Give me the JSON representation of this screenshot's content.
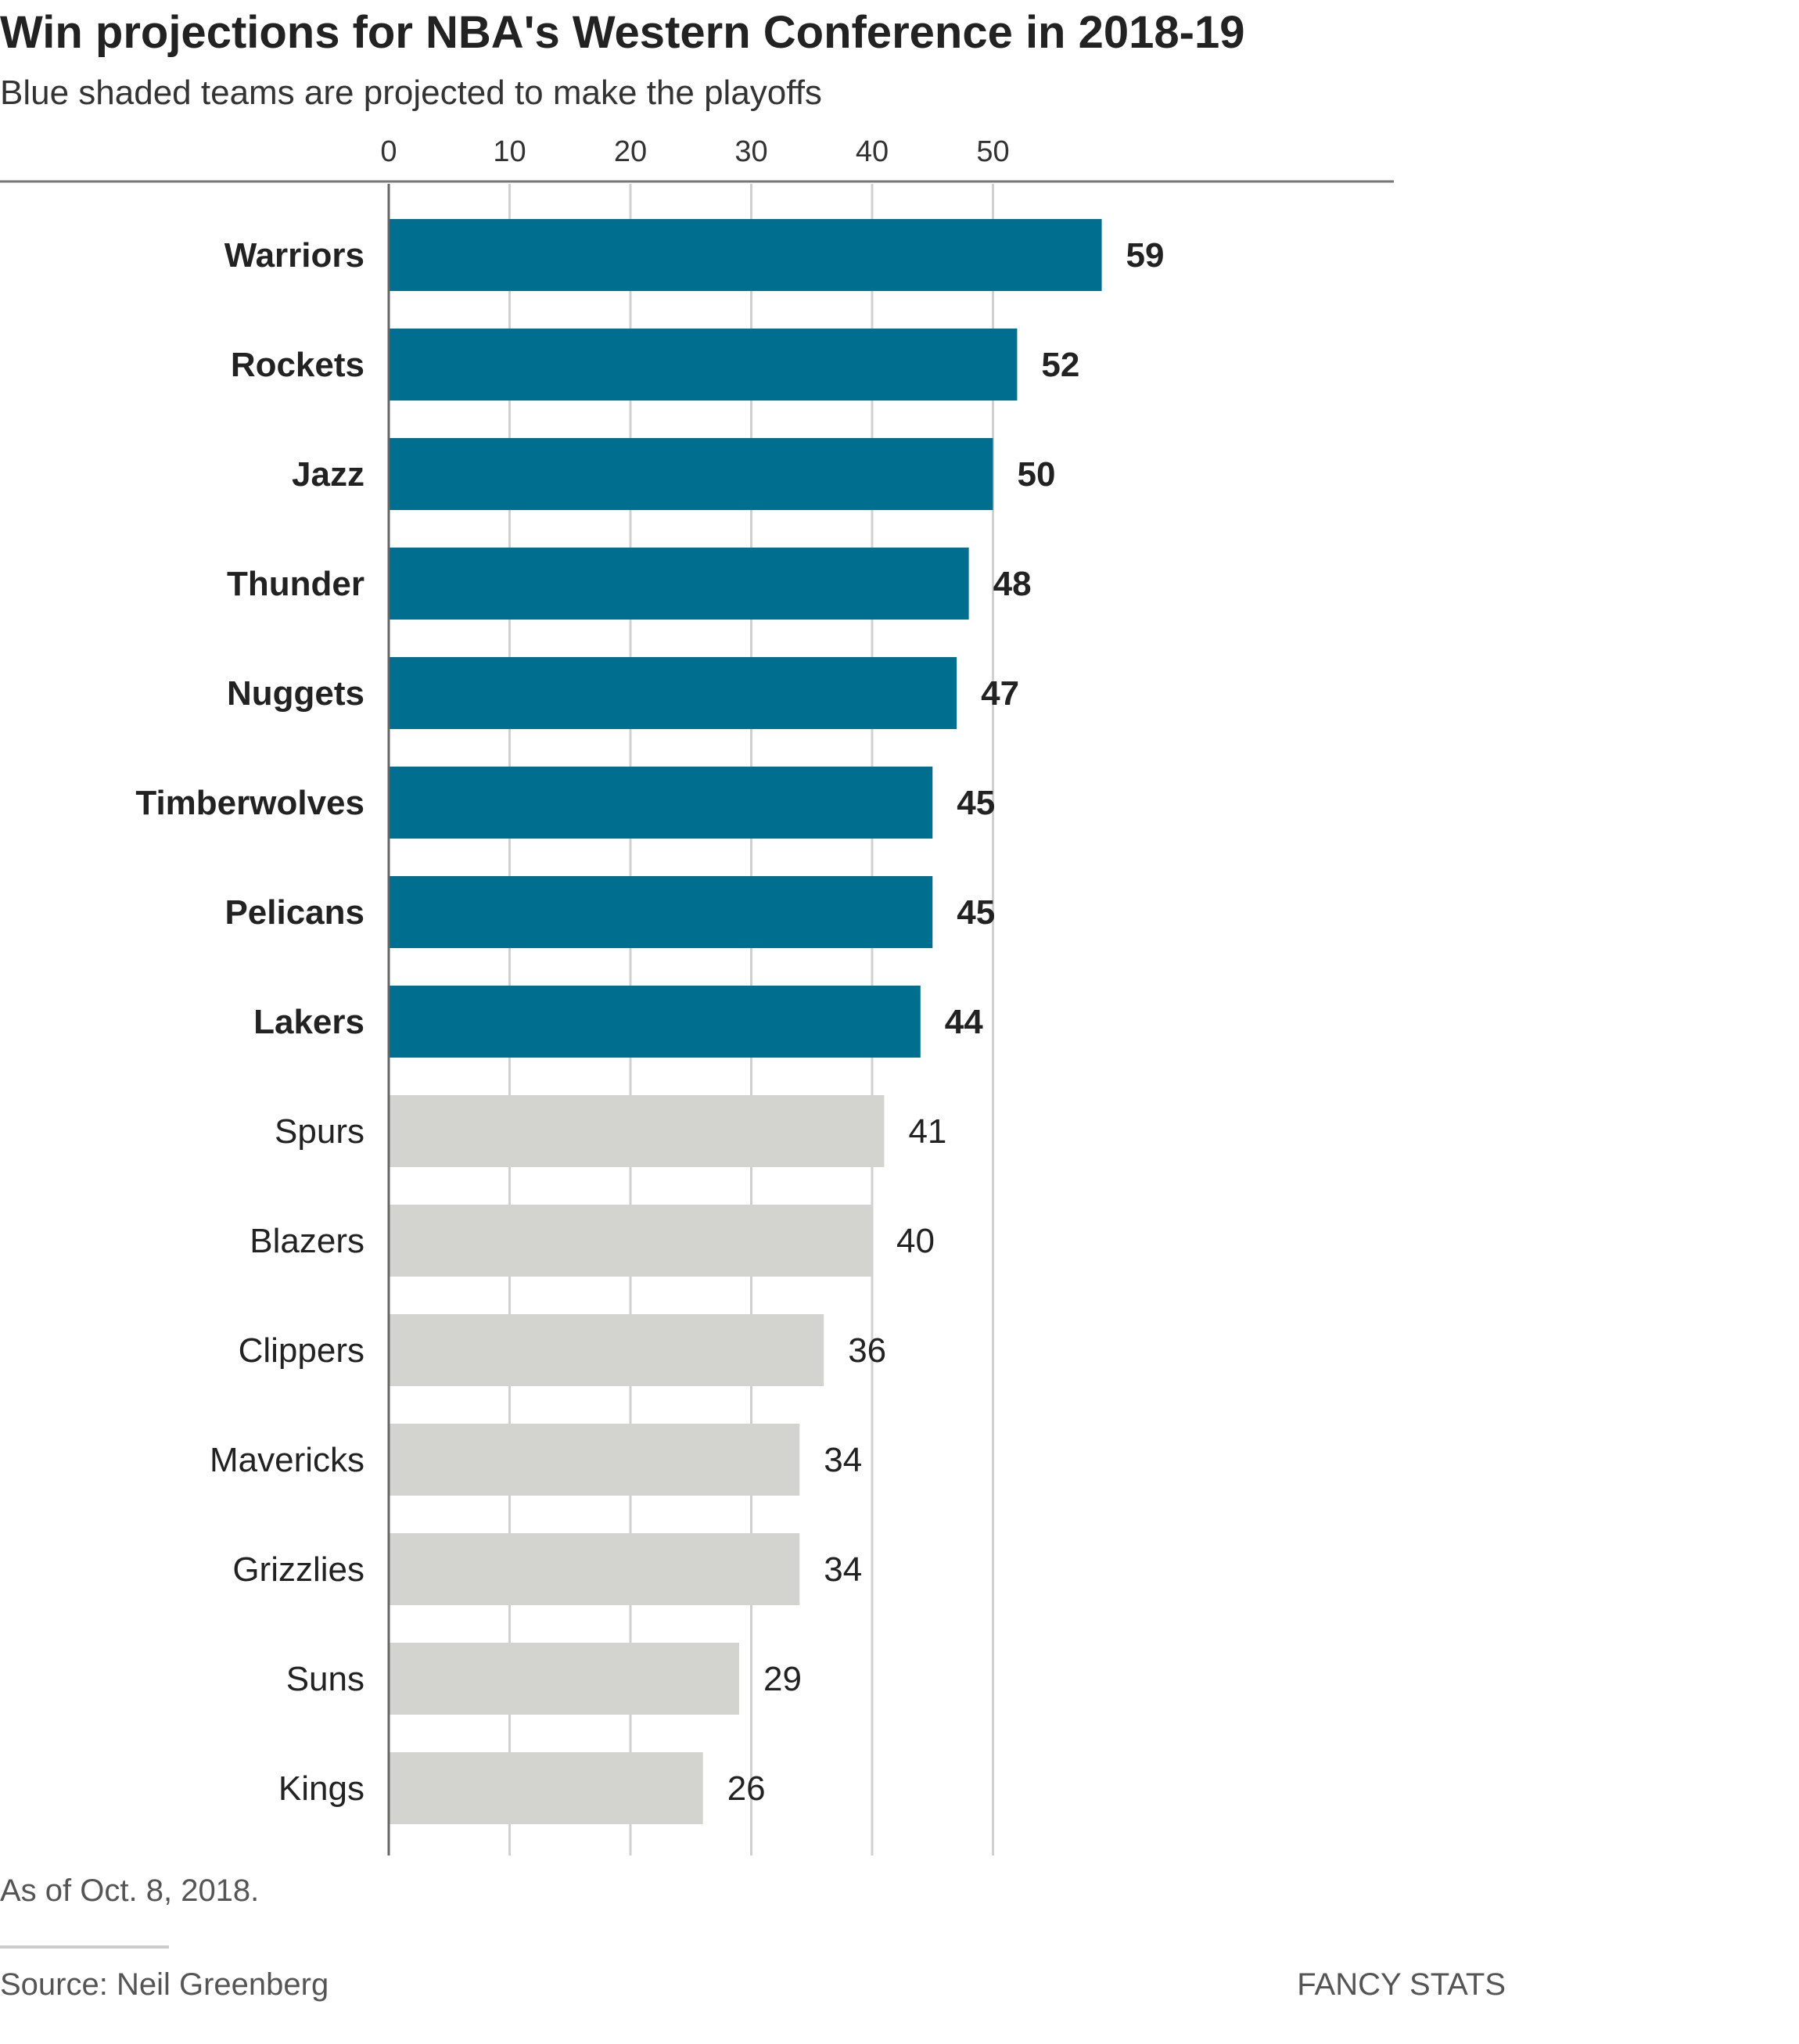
{
  "chart_data": {
    "type": "bar",
    "orientation": "horizontal",
    "title": "Win projections for NBA's Western Conference in 2018-19",
    "subtitle": "Blue shaded teams are projected to make the playoffs",
    "categories": [
      "Warriors",
      "Rockets",
      "Jazz",
      "Thunder",
      "Nuggets",
      "Timberwolves",
      "Pelicans",
      "Lakers",
      "Spurs",
      "Blazers",
      "Clippers",
      "Mavericks",
      "Grizzlies",
      "Suns",
      "Kings"
    ],
    "values": [
      59,
      52,
      50,
      48,
      47,
      45,
      45,
      44,
      41,
      40,
      36,
      34,
      34,
      29,
      26
    ],
    "playoffs": [
      true,
      true,
      true,
      true,
      true,
      true,
      true,
      true,
      false,
      false,
      false,
      false,
      false,
      false,
      false
    ],
    "ticks": [
      "0",
      "10",
      "20",
      "30",
      "40",
      "50"
    ],
    "xlim": [
      0,
      83
    ],
    "axis_position": "top",
    "grid": true,
    "colors": {
      "playoff": "#006e8f",
      "non_playoff": "#d3d3cf"
    },
    "note": "As of Oct. 8, 2018.",
    "source": "Source: Neil Greenberg",
    "brand": "FANCY STATS"
  }
}
